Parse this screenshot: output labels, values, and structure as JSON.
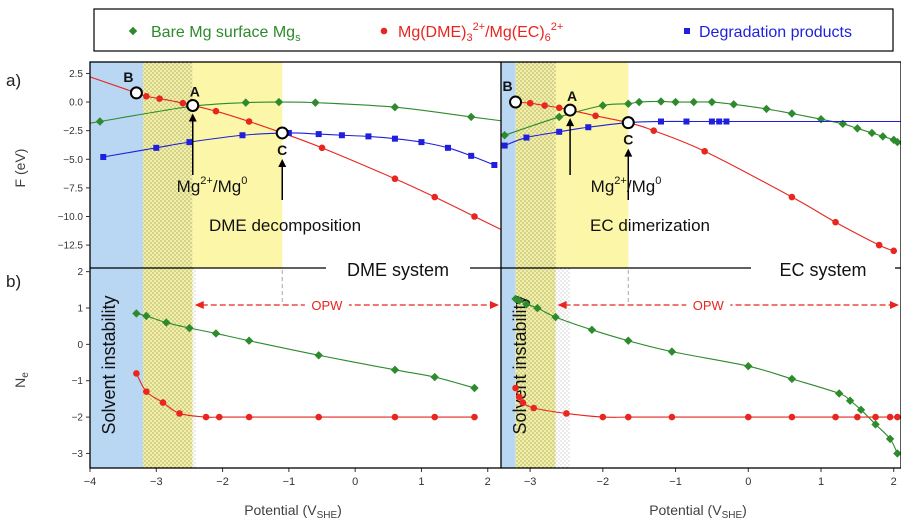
{
  "figure": {
    "panel_a": "a)",
    "panel_b": "b)",
    "legend": [
      {
        "key": "bare",
        "text": "Bare Mg surface Mg",
        "sub": "s",
        "sup": "",
        "after": "",
        "color": "#2d8a2d",
        "marker": "diamond"
      },
      {
        "key": "complex",
        "text": "Mg(DME)",
        "sub": "3",
        "sup": "2+",
        "after": "/Mg(EC)",
        "sub2": "6",
        "sup2": "2+",
        "color": "#e8251f",
        "marker": "circle"
      },
      {
        "key": "degr",
        "text": "Degradation products",
        "sub": "",
        "sup": "",
        "after": "",
        "color": "#1f1fdd",
        "marker": "square"
      }
    ],
    "ylabel_top": "F (eV)",
    "ylabel_bottom_main": "N",
    "ylabel_bottom_sub": "e",
    "xlabel_main": "Potential (V",
    "xlabel_sub": "SHE",
    "xlabel_close": ")",
    "solvent_instability": "Solvent instability",
    "opw": "OPW",
    "point_labels": {
      "a": "A",
      "b": "B",
      "c": "C"
    },
    "mg_couple": {
      "base": "Mg",
      "sup1": "2+",
      "mid": "/Mg",
      "sup2": "0"
    },
    "yticks_top": [
      "2.5",
      "0.0",
      "−2.5",
      "−5.0",
      "−7.5",
      "−10.0",
      "−12.5"
    ],
    "yticks_bottom": [
      "2",
      "1",
      "0",
      "−1",
      "−2",
      "−3"
    ],
    "xticks_left": [
      "−4",
      "−3",
      "−2",
      "−1",
      "0",
      "1",
      "2"
    ],
    "xticks_right": [
      "−3",
      "−2",
      "−1",
      "0",
      "1",
      "2"
    ],
    "colors": {
      "blue_band": "#b9d7f3",
      "yellow_band": "#fbf6a8",
      "bare": "#2d8a2d",
      "complex": "#e8251f",
      "degr": "#1f1fdd"
    }
  },
  "chart_data": [
    {
      "type": "line",
      "system": "DME system",
      "decomposition_label": "DME decomposition",
      "axes": {
        "x_range": [
          -4,
          2.2
        ],
        "y_top_range": [
          -14.5,
          3.5
        ],
        "y_bottom_range": [
          -3.4,
          2.1
        ]
      },
      "bands": {
        "solvent_instability": [
          -4,
          -3.2
        ],
        "hatched": [
          -3.2,
          -2.45
        ],
        "yellow": [
          -2.45,
          -1.1
        ]
      },
      "points": {
        "A": [
          -2.45,
          -0.3
        ],
        "B": [
          -3.3,
          0.8
        ],
        "C": [
          -1.1,
          -2.7
        ]
      },
      "opw": [
        -2.45,
        2.2
      ],
      "free_energy": [
        {
          "name": "Bare Mg surface Mg_s",
          "color": "#2d8a2d",
          "marker": "diamond",
          "x": [
            -3.85,
            -2.5,
            -1.65,
            -1.15,
            -0.6,
            0.6,
            1.75
          ],
          "y": [
            -1.7,
            -0.4,
            -0.05,
            0.0,
            -0.05,
            -0.45,
            -1.3
          ]
        },
        {
          "name": "Mg(DME)3^2+",
          "color": "#e8251f",
          "marker": "circle",
          "x": [
            -3.3,
            -3.15,
            -2.95,
            -2.6,
            -2.1,
            -1.6,
            -1.1,
            -0.5,
            0.6,
            1.2,
            1.8
          ],
          "y": [
            0.8,
            0.5,
            0.3,
            -0.1,
            -0.8,
            -1.7,
            -2.7,
            -4.0,
            -6.7,
            -8.3,
            -10.0
          ]
        },
        {
          "name": "Degradation products",
          "color": "#1f1fdd",
          "marker": "square",
          "x": [
            -3.8,
            -3.0,
            -2.5,
            -1.7,
            -1.0,
            -0.55,
            -0.2,
            0.2,
            0.6,
            1.0,
            1.4,
            1.75,
            2.1
          ],
          "y": [
            -4.8,
            -4.0,
            -3.5,
            -2.9,
            -2.7,
            -2.8,
            -2.9,
            -3.0,
            -3.2,
            -3.5,
            -4.0,
            -4.7,
            -5.5
          ]
        }
      ],
      "ne": [
        {
          "name": "Bare Mg surface Mg_s",
          "color": "#2d8a2d",
          "marker": "diamond",
          "x": [
            -3.3,
            -3.15,
            -2.85,
            -2.5,
            -2.1,
            -1.6,
            -0.55,
            0.6,
            1.2,
            1.8
          ],
          "y": [
            0.85,
            0.78,
            0.6,
            0.45,
            0.3,
            0.1,
            -0.3,
            -0.7,
            -0.9,
            -1.2
          ]
        },
        {
          "name": "Mg(DME)3^2+",
          "color": "#e8251f",
          "marker": "circle",
          "x": [
            -3.3,
            -3.15,
            -2.9,
            -2.65,
            -2.25,
            -2.05,
            -1.6,
            -0.55,
            0.6,
            1.2,
            1.8
          ],
          "y": [
            -0.8,
            -1.3,
            -1.6,
            -1.9,
            -2.0,
            -2.0,
            -2.0,
            -2.0,
            -2.0,
            -2.0,
            -2.0
          ]
        }
      ]
    },
    {
      "type": "line",
      "system": "EC system",
      "decomposition_label": "EC dimerization",
      "axes": {
        "x_range": [
          -3.4,
          2.1
        ],
        "y_top_range": [
          -14.5,
          3.5
        ],
        "y_bottom_range": [
          -3.4,
          2.1
        ]
      },
      "bands": {
        "solvent_instability": [
          -3.4,
          -3.2
        ],
        "hatched": [
          -3.2,
          -2.65
        ],
        "dotted": [
          -2.65,
          -2.45
        ],
        "yellow": [
          -2.45,
          -1.65
        ]
      },
      "points": {
        "A": [
          -2.45,
          -0.7
        ],
        "B": [
          -3.2,
          0.0
        ],
        "C": [
          -1.65,
          -1.8
        ]
      },
      "opw": [
        -2.65,
        2.1
      ],
      "free_energy": [
        {
          "name": "Bare Mg surface Mg_s",
          "color": "#2d8a2d",
          "marker": "diamond",
          "x": [
            -3.35,
            -2.6,
            -2.0,
            -1.65,
            -1.5,
            -1.2,
            -1.0,
            -0.75,
            -0.5,
            -0.2,
            0.25,
            0.6,
            1.0,
            1.3,
            1.5,
            1.7,
            1.85,
            2.0,
            2.05
          ],
          "y": [
            -2.9,
            -1.3,
            -0.3,
            -0.15,
            0.0,
            0.05,
            0.0,
            0.0,
            0.0,
            -0.2,
            -0.6,
            -1.0,
            -1.5,
            -1.9,
            -2.3,
            -2.7,
            -3.0,
            -3.3,
            -3.5
          ]
        },
        {
          "name": "Mg(EC)6^2+",
          "color": "#e8251f",
          "marker": "circle",
          "x": [
            -3.2,
            -3.0,
            -2.8,
            -2.6,
            -2.45,
            -2.1,
            -1.65,
            -1.3,
            -0.6,
            0.6,
            1.2,
            1.8,
            2.0
          ],
          "y": [
            0.0,
            -0.1,
            -0.3,
            -0.5,
            -0.7,
            -1.2,
            -1.8,
            -2.5,
            -4.3,
            -8.3,
            -10.5,
            -12.5,
            -13.0
          ]
        },
        {
          "name": "Degradation products",
          "color": "#1f1fdd",
          "marker": "square",
          "x": [
            -3.35,
            -3.05,
            -2.6,
            -2.2,
            -1.65,
            -1.2,
            -0.85,
            -0.5,
            -0.4,
            -0.3
          ],
          "y": [
            -3.8,
            -3.1,
            -2.6,
            -2.2,
            -1.8,
            -1.7,
            -1.7,
            -1.7,
            -1.7,
            -1.7
          ]
        }
      ],
      "ne": [
        {
          "name": "Bare Mg surface Mg_s",
          "color": "#2d8a2d",
          "marker": "diamond",
          "x": [
            -3.2,
            -3.15,
            -3.05,
            -2.9,
            -2.65,
            -2.15,
            -1.65,
            -1.05,
            0.0,
            0.6,
            1.25,
            1.4,
            1.55,
            1.75,
            1.95,
            2.05
          ],
          "y": [
            1.25,
            1.2,
            1.1,
            1.0,
            0.75,
            0.4,
            0.1,
            -0.2,
            -0.6,
            -0.95,
            -1.35,
            -1.55,
            -1.8,
            -2.2,
            -2.6,
            -3.0
          ]
        },
        {
          "name": "Mg(EC)6^2+",
          "color": "#e8251f",
          "marker": "circle",
          "x": [
            -3.2,
            -3.15,
            -3.1,
            -2.95,
            -2.5,
            -2.0,
            -1.65,
            -1.05,
            0.0,
            0.6,
            1.2,
            1.5,
            1.75,
            1.95,
            2.05
          ],
          "y": [
            -1.2,
            -1.45,
            -1.6,
            -1.75,
            -1.9,
            -2.0,
            -2.0,
            -2.0,
            -2.0,
            -2.0,
            -2.0,
            -2.0,
            -2.0,
            -2.0,
            -2.0
          ]
        }
      ]
    }
  ]
}
